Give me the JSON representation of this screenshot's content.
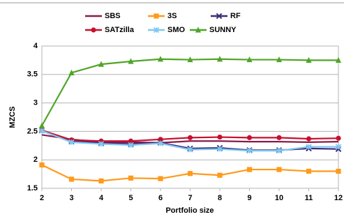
{
  "chart_data": {
    "type": "line",
    "x_label": "Portfolio size",
    "y_label": "MZCS",
    "x": [
      2,
      3,
      4,
      5,
      6,
      7,
      8,
      9,
      10,
      11,
      12
    ],
    "xlim": [
      2,
      12
    ],
    "xticks": [
      2,
      3,
      4,
      5,
      6,
      7,
      8,
      9,
      10,
      11,
      12
    ],
    "ylim": [
      1.5,
      4
    ],
    "yticks": [
      1.5,
      2,
      2.5,
      3,
      3.5,
      4
    ],
    "grid": true,
    "series": [
      {
        "name": "SBS",
        "color": "#8b1a4a",
        "marker": "none",
        "values": [
          2.44,
          2.36,
          2.31,
          2.31,
          2.3,
          2.33,
          2.33,
          2.32,
          2.32,
          2.31,
          2.32
        ]
      },
      {
        "name": "3S",
        "color": "#ff9a1a",
        "marker": "square",
        "values": [
          1.91,
          1.66,
          1.63,
          1.68,
          1.67,
          1.76,
          1.73,
          1.83,
          1.83,
          1.8,
          1.8
        ]
      },
      {
        "name": "RF",
        "color": "#3b2a7a",
        "marker": "x",
        "values": [
          2.52,
          2.33,
          2.29,
          2.28,
          2.3,
          2.2,
          2.21,
          2.17,
          2.17,
          2.2,
          2.19
        ]
      },
      {
        "name": "SATzilla",
        "color": "#c8102e",
        "marker": "circle",
        "values": [
          2.52,
          2.35,
          2.33,
          2.33,
          2.36,
          2.39,
          2.4,
          2.39,
          2.39,
          2.37,
          2.38
        ]
      },
      {
        "name": "SMO",
        "color": "#7ec8f0",
        "marker": "star",
        "values": [
          2.51,
          2.31,
          2.28,
          2.26,
          2.29,
          2.18,
          2.19,
          2.16,
          2.16,
          2.23,
          2.23
        ]
      },
      {
        "name": "SUNNY",
        "color": "#4fa526",
        "marker": "triangle",
        "values": [
          2.6,
          3.53,
          3.68,
          3.73,
          3.77,
          3.76,
          3.77,
          3.76,
          3.76,
          3.75,
          3.75
        ]
      }
    ]
  }
}
